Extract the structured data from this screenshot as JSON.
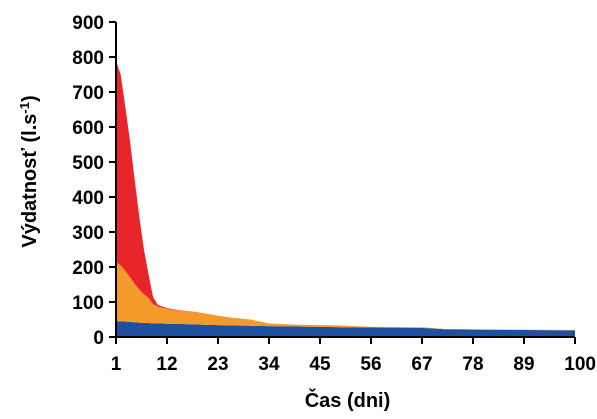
{
  "chart_data": {
    "type": "area",
    "stacked": true,
    "title": "",
    "xlabel": "Čas (dni)",
    "ylabel_main": "Výdatnosť (l.s",
    "ylabel_sup": "-1",
    "ylabel_close": ")",
    "xlim": [
      1,
      100
    ],
    "ylim": [
      0,
      900
    ],
    "y_ticks": [
      "0",
      "100",
      "200",
      "300",
      "400",
      "500",
      "600",
      "700",
      "800",
      "900"
    ],
    "x_ticks": [
      "1",
      "12",
      "23",
      "34",
      "45",
      "56",
      "67",
      "78",
      "89",
      "100"
    ],
    "x": [
      1,
      2,
      3,
      4,
      5,
      6,
      7,
      8,
      9,
      10,
      12,
      15,
      18,
      20,
      23,
      26,
      30,
      34,
      40,
      45,
      50,
      56,
      67,
      72,
      78,
      89,
      100
    ],
    "series": [
      {
        "color": "#1f4fa0",
        "values": [
          45,
          45,
          44,
          43,
          42,
          41,
          40,
          40,
          39,
          39,
          38,
          37,
          36,
          35,
          34,
          33,
          32,
          31,
          30,
          29,
          28,
          27,
          26,
          22,
          21,
          20,
          19
        ]
      },
      {
        "color": "#f39a2a",
        "values": [
          170,
          160,
          145,
          128,
          110,
          95,
          82,
          72,
          55,
          48,
          42,
          38,
          36,
          33,
          27,
          22,
          18,
          8,
          5,
          5,
          5,
          2,
          2,
          1,
          1,
          1,
          1
        ]
      },
      {
        "color": "#e8262a",
        "values": [
          575,
          545,
          470,
          390,
          300,
          210,
          130,
          68,
          20,
          5,
          2,
          1,
          0,
          0,
          0,
          0,
          0,
          0,
          0,
          0,
          0,
          0,
          0,
          0,
          0,
          0,
          0
        ]
      }
    ],
    "grid": false,
    "legend": "none"
  }
}
